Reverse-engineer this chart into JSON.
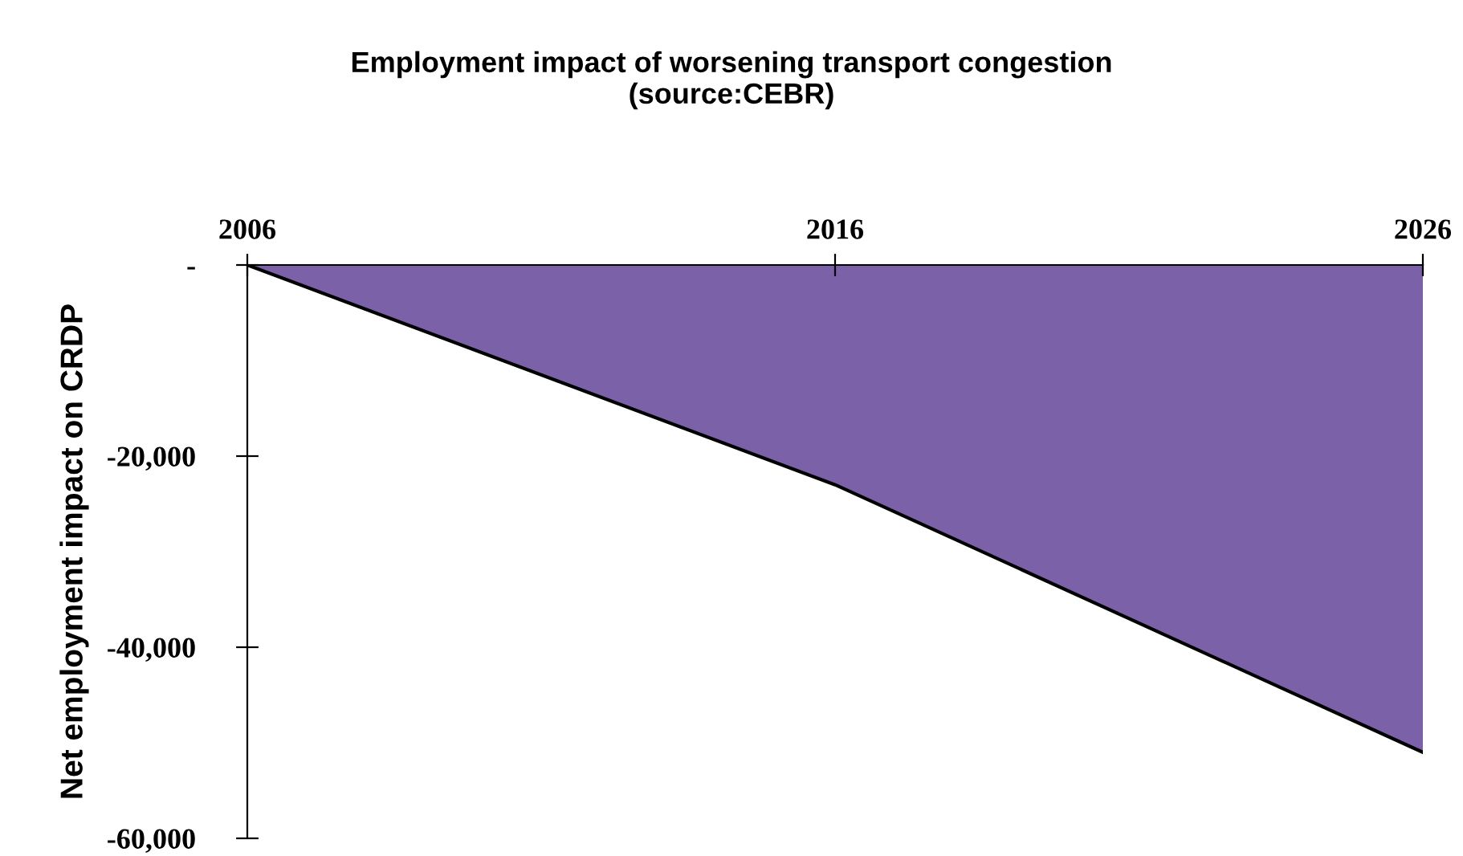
{
  "chart_data": {
    "type": "area",
    "title": "Employment impact of worsening transport congestion\n(source:CEBR)",
    "ylabel": "Net employment impact on CRDP",
    "x": [
      2006,
      2016,
      2026
    ],
    "series": [
      {
        "color": "#7b61a8",
        "values": [
          0,
          -23000,
          -51000
        ]
      }
    ],
    "xlim": [
      2006,
      2026
    ],
    "xticks": [
      2006,
      2016,
      2026
    ],
    "ylim": [
      -60000,
      0
    ],
    "yticks": [
      {
        "value": -60000,
        "label": "-60,000"
      },
      {
        "value": -40000,
        "label": "-40,000"
      },
      {
        "value": -20000,
        "label": "-20,000"
      },
      {
        "value": 0,
        "label": "-"
      }
    ],
    "grid": false,
    "legend": false
  }
}
